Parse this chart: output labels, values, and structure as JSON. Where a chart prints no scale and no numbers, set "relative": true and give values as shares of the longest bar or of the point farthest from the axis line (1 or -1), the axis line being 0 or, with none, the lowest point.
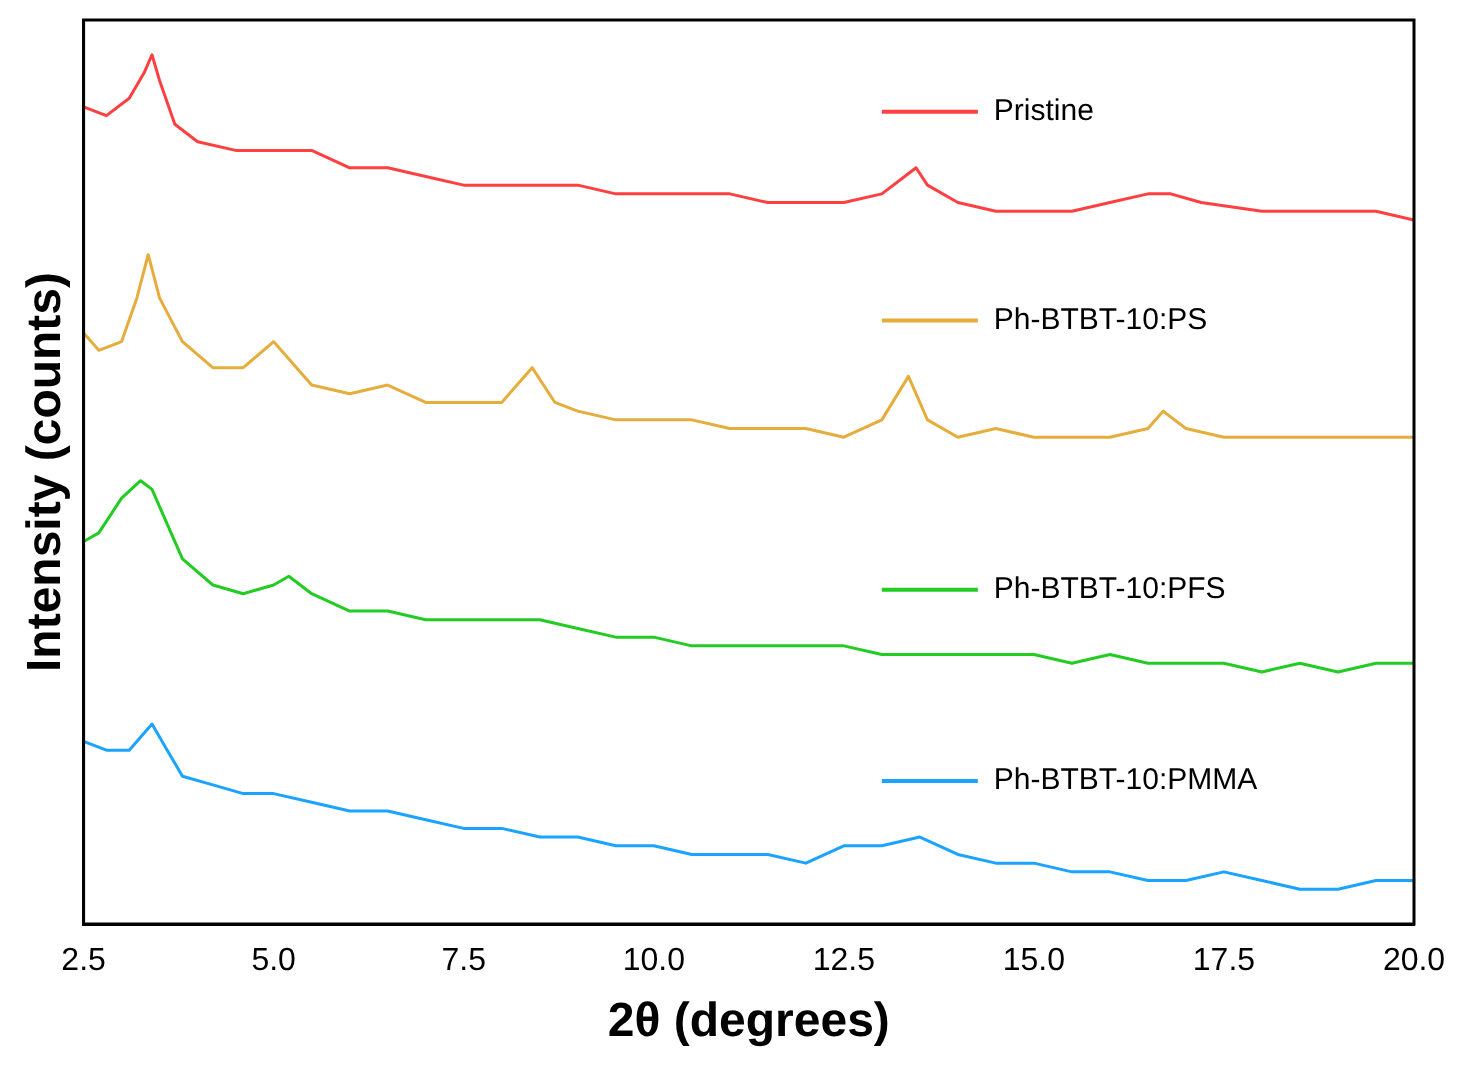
{
  "chart_data": {
    "type": "line",
    "xlabel": "2θ (degrees)",
    "ylabel": "Intensity (counts)",
    "relative": true,
    "tick_labels": "x",
    "grid": false,
    "legend": "right",
    "marker": "none",
    "line_style": "solid",
    "xlim": [
      2.5,
      20
    ],
    "xticks": [
      {
        "value": 2.5,
        "label": "2.5"
      },
      {
        "value": 5,
        "label": "5.0"
      },
      {
        "value": 7.5,
        "label": "7.5"
      },
      {
        "value": 10,
        "label": "10.0"
      },
      {
        "value": 12.5,
        "label": "12.5"
      },
      {
        "value": 15,
        "label": "15.0"
      },
      {
        "value": 17.5,
        "label": "17.5"
      },
      {
        "value": 20,
        "label": "20.0"
      }
    ],
    "series": [
      {
        "name": "Pristine",
        "color": "#ff4040",
        "x": [
          2.5,
          2.8,
          3.1,
          3.3,
          3.4,
          3.5,
          3.7,
          4.0,
          4.5,
          5.0,
          5.5,
          6.0,
          6.5,
          7.0,
          7.5,
          8.0,
          8.5,
          9.0,
          9.5,
          10.0,
          10.5,
          11.0,
          11.5,
          12.0,
          12.5,
          13.0,
          13.3,
          13.45,
          13.6,
          14.0,
          14.5,
          15.0,
          15.5,
          16.0,
          16.5,
          16.8,
          17.2,
          18.0,
          18.5,
          19.0,
          19.5,
          20.0
        ],
        "values": [
          0.94,
          0.93,
          0.95,
          0.98,
          1.0,
          0.97,
          0.92,
          0.9,
          0.89,
          0.89,
          0.89,
          0.87,
          0.87,
          0.86,
          0.85,
          0.85,
          0.85,
          0.85,
          0.84,
          0.84,
          0.84,
          0.84,
          0.83,
          0.83,
          0.83,
          0.84,
          0.86,
          0.87,
          0.85,
          0.83,
          0.82,
          0.82,
          0.82,
          0.83,
          0.84,
          0.84,
          0.83,
          0.82,
          0.82,
          0.82,
          0.82,
          0.81
        ]
      },
      {
        "name": "Ph-BTBT-10:PS",
        "color": "#e6ac3c",
        "x": [
          2.5,
          2.7,
          3.0,
          3.2,
          3.35,
          3.5,
          3.8,
          4.2,
          4.6,
          5.0,
          5.2,
          5.5,
          6.0,
          6.5,
          7.0,
          7.5,
          8.0,
          8.4,
          8.7,
          9.0,
          9.5,
          10.0,
          10.5,
          11.0,
          11.5,
          12.0,
          12.5,
          13.0,
          13.35,
          13.6,
          14.0,
          14.5,
          15.0,
          15.5,
          16.0,
          16.5,
          16.7,
          17.0,
          17.5,
          18.0,
          18.5,
          19.0,
          19.5,
          20.0
        ],
        "values": [
          0.68,
          0.66,
          0.67,
          0.72,
          0.77,
          0.72,
          0.67,
          0.64,
          0.64,
          0.67,
          0.65,
          0.62,
          0.61,
          0.62,
          0.6,
          0.6,
          0.6,
          0.64,
          0.6,
          0.59,
          0.58,
          0.58,
          0.58,
          0.57,
          0.57,
          0.57,
          0.56,
          0.58,
          0.63,
          0.58,
          0.56,
          0.57,
          0.56,
          0.56,
          0.56,
          0.57,
          0.59,
          0.57,
          0.56,
          0.56,
          0.56,
          0.56,
          0.56,
          0.56
        ]
      },
      {
        "name": "Ph-BTBT-10:PFS",
        "color": "#22cc22",
        "x": [
          2.5,
          2.7,
          3.0,
          3.25,
          3.4,
          3.6,
          3.8,
          4.2,
          4.6,
          5.0,
          5.2,
          5.5,
          6.0,
          6.5,
          7.0,
          7.5,
          8.0,
          8.5,
          9.0,
          9.5,
          10.0,
          10.5,
          11.0,
          11.5,
          12.0,
          12.5,
          13.0,
          13.5,
          14.0,
          14.5,
          15.0,
          15.5,
          16.0,
          16.5,
          17.0,
          17.5,
          18.0,
          18.5,
          19.0,
          19.5,
          20.0
        ],
        "values": [
          0.44,
          0.45,
          0.49,
          0.51,
          0.5,
          0.46,
          0.42,
          0.39,
          0.38,
          0.39,
          0.4,
          0.38,
          0.36,
          0.36,
          0.35,
          0.35,
          0.35,
          0.35,
          0.34,
          0.33,
          0.33,
          0.32,
          0.32,
          0.32,
          0.32,
          0.32,
          0.31,
          0.31,
          0.31,
          0.31,
          0.31,
          0.3,
          0.31,
          0.3,
          0.3,
          0.3,
          0.29,
          0.3,
          0.29,
          0.3,
          0.3
        ]
      },
      {
        "name": "Ph-BTBT-10:PMMA",
        "color": "#1aa3ff",
        "x": [
          2.5,
          2.8,
          3.1,
          3.3,
          3.4,
          3.6,
          3.8,
          4.2,
          4.6,
          5.0,
          5.5,
          6.0,
          6.5,
          7.0,
          7.5,
          8.0,
          8.5,
          9.0,
          9.5,
          10.0,
          10.5,
          11.0,
          11.5,
          12.0,
          12.5,
          13.0,
          13.5,
          14.0,
          14.5,
          15.0,
          15.5,
          16.0,
          16.5,
          17.0,
          17.5,
          18.0,
          18.5,
          19.0,
          19.5,
          20.0
        ],
        "values": [
          0.21,
          0.2,
          0.2,
          0.22,
          0.23,
          0.2,
          0.17,
          0.16,
          0.15,
          0.15,
          0.14,
          0.13,
          0.13,
          0.12,
          0.11,
          0.11,
          0.1,
          0.1,
          0.09,
          0.09,
          0.08,
          0.08,
          0.08,
          0.07,
          0.09,
          0.09,
          0.1,
          0.08,
          0.07,
          0.07,
          0.06,
          0.06,
          0.05,
          0.05,
          0.06,
          0.05,
          0.04,
          0.04,
          0.05,
          0.05
        ]
      }
    ]
  }
}
